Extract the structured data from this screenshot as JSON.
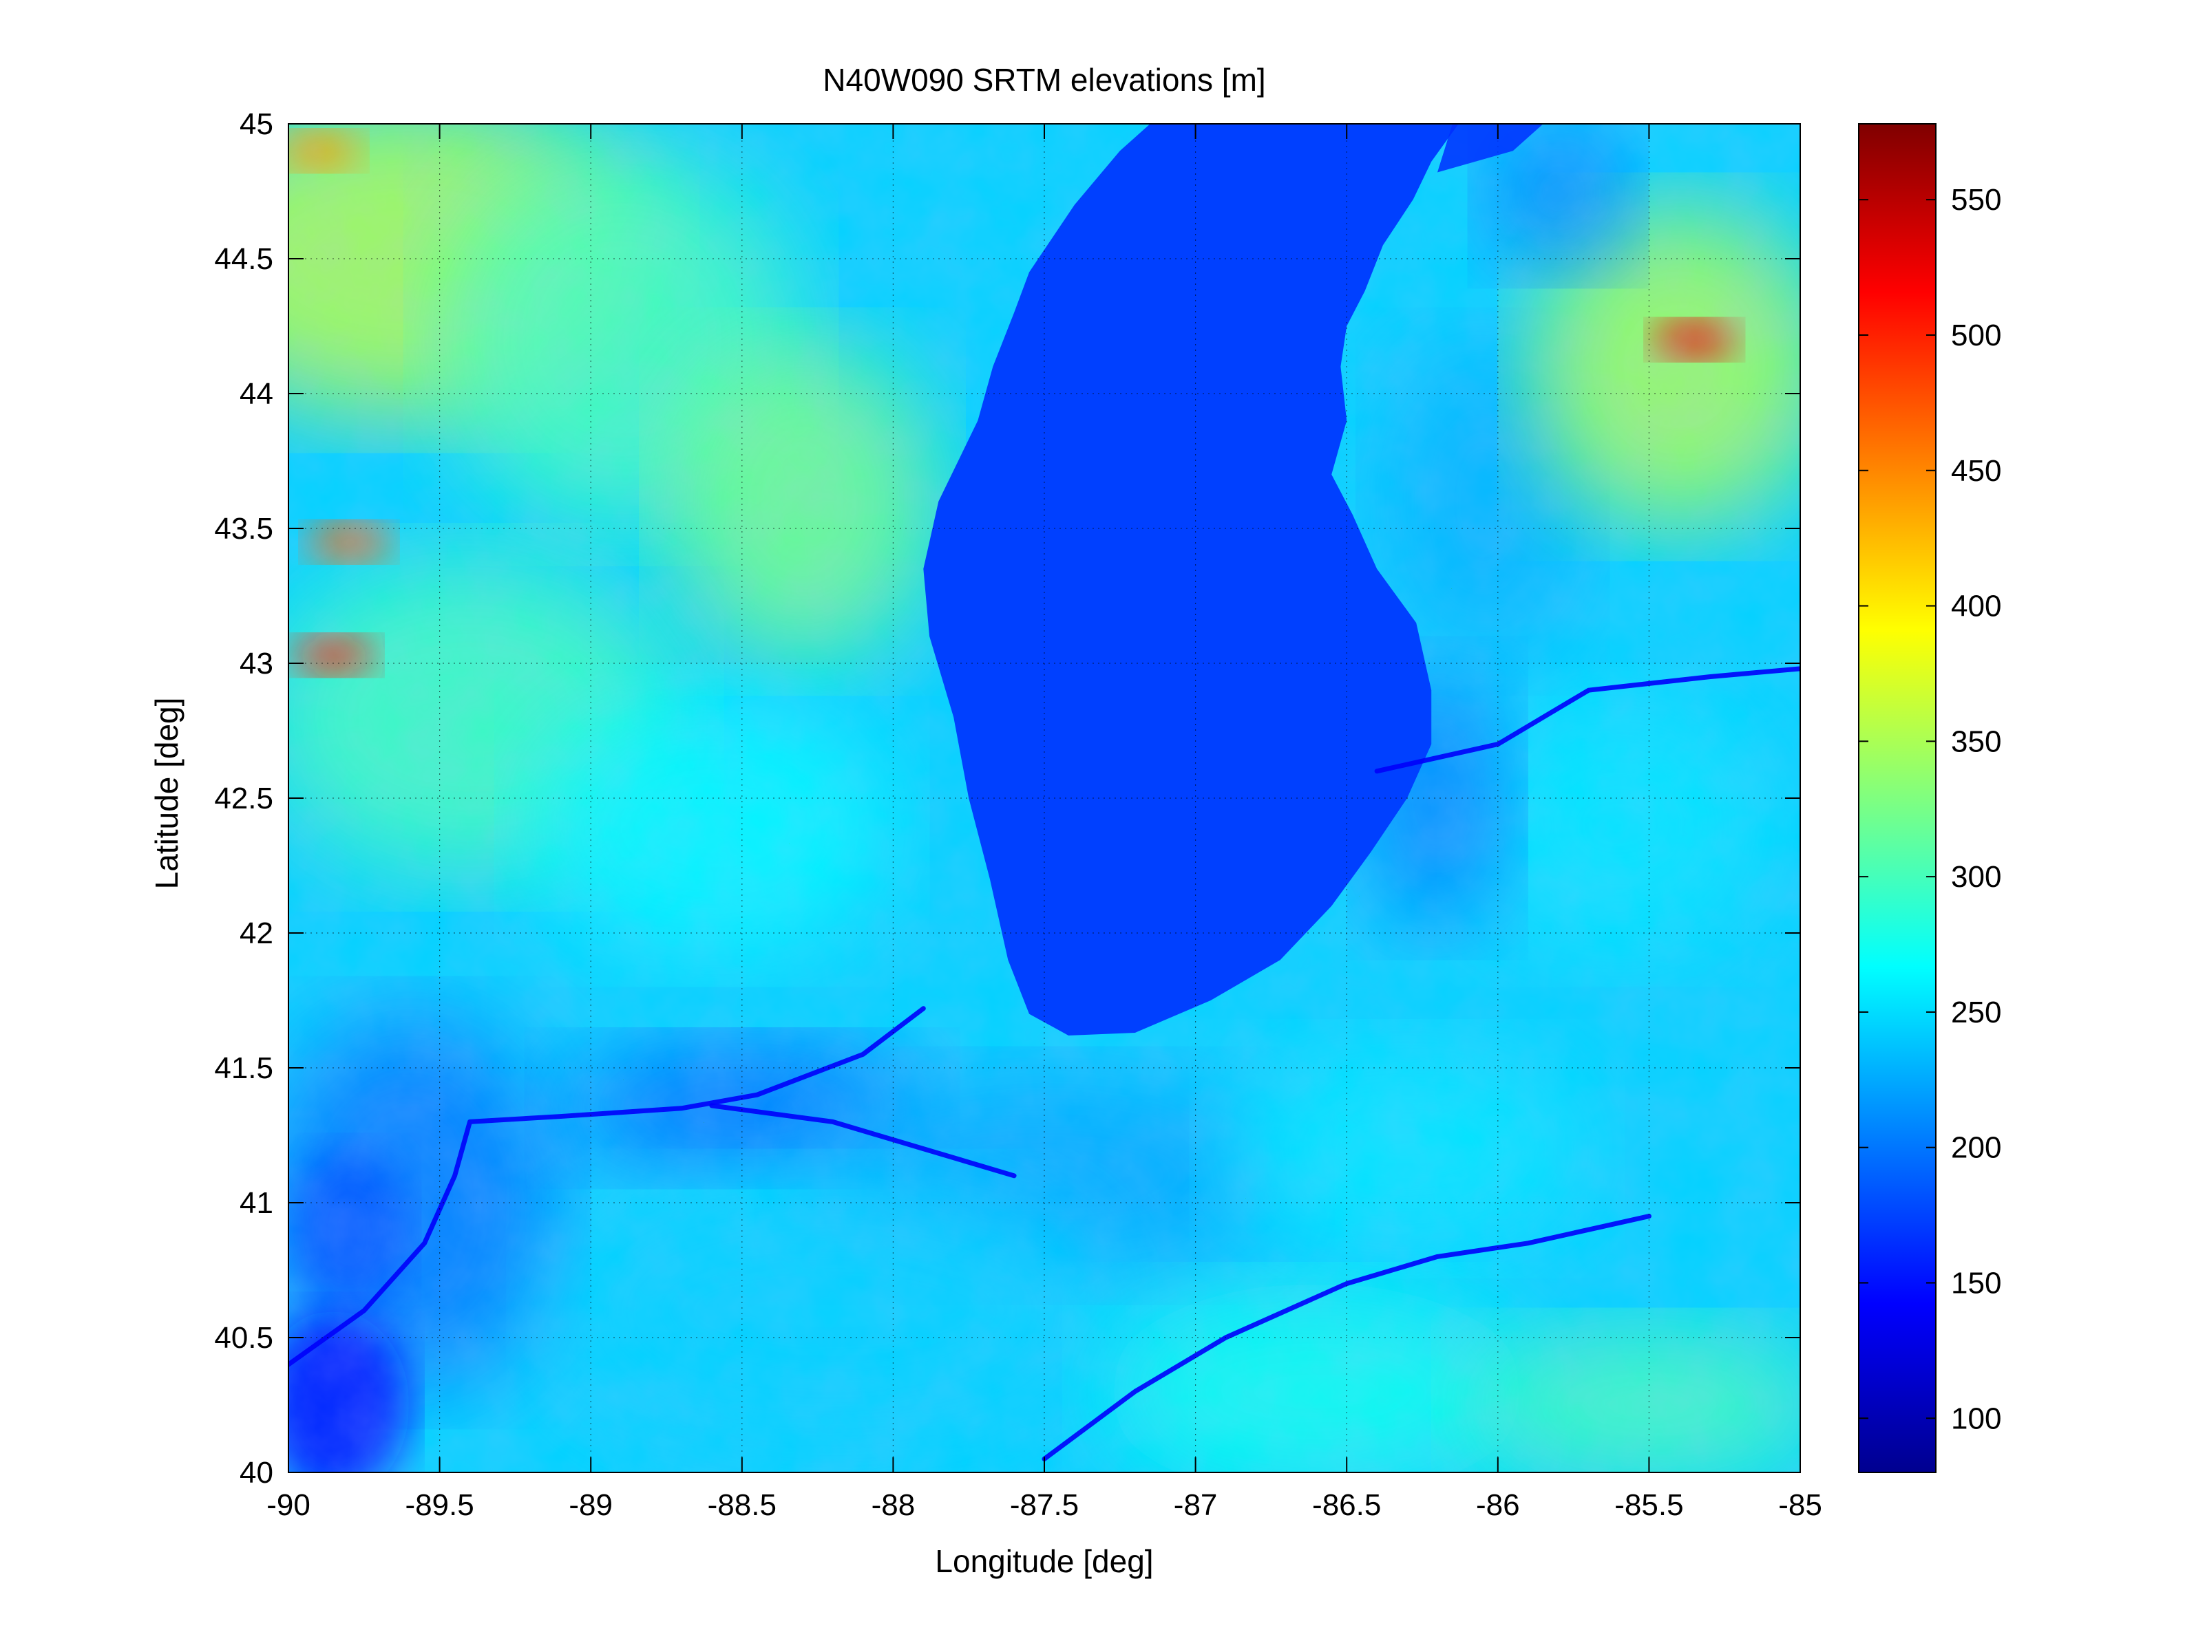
{
  "chart_data": {
    "type": "heatmap",
    "title": "N40W090 SRTM elevations [m]",
    "xlabel": "Longitude [deg]",
    "ylabel": "Latitude [deg]",
    "xlim": [
      -90,
      -85
    ],
    "ylim": [
      40,
      45
    ],
    "x_ticks": [
      -90,
      -89.5,
      -89,
      -88.5,
      -88,
      -87.5,
      -87,
      -86.5,
      -86,
      -85.5,
      -85
    ],
    "y_ticks": [
      40,
      40.5,
      41,
      41.5,
      42,
      42.5,
      43,
      43.5,
      44,
      44.5,
      45
    ],
    "grid": "on",
    "colormap": "jet",
    "colorbar": {
      "location": "right",
      "clim": [
        80,
        578
      ],
      "ticks": [
        100,
        150,
        200,
        250,
        300,
        350,
        400,
        450,
        500,
        550
      ]
    },
    "colors": {
      "jet_stops": [
        "#00008f",
        "#0000ff",
        "#00ffff",
        "#ffff00",
        "#ff0000",
        "#800000"
      ],
      "lake_color": "#0040ff"
    },
    "features": {
      "lake_michigan_outline_lonlat": [
        [
          -87.15,
          45.0
        ],
        [
          -86.13,
          45.0
        ],
        [
          -86.22,
          44.86
        ],
        [
          -86.28,
          44.72
        ],
        [
          -86.38,
          44.55
        ],
        [
          -86.44,
          44.38
        ],
        [
          -86.5,
          44.25
        ],
        [
          -86.52,
          44.1
        ],
        [
          -86.5,
          43.9
        ],
        [
          -86.55,
          43.7
        ],
        [
          -86.48,
          43.55
        ],
        [
          -86.4,
          43.35
        ],
        [
          -86.27,
          43.15
        ],
        [
          -86.22,
          42.9
        ],
        [
          -86.22,
          42.7
        ],
        [
          -86.3,
          42.5
        ],
        [
          -86.42,
          42.3
        ],
        [
          -86.55,
          42.1
        ],
        [
          -86.72,
          41.9
        ],
        [
          -86.95,
          41.75
        ],
        [
          -87.2,
          41.63
        ],
        [
          -87.42,
          41.62
        ],
        [
          -87.55,
          41.7
        ],
        [
          -87.62,
          41.9
        ],
        [
          -87.68,
          42.2
        ],
        [
          -87.75,
          42.5
        ],
        [
          -87.8,
          42.8
        ],
        [
          -87.88,
          43.1
        ],
        [
          -87.9,
          43.35
        ],
        [
          -87.85,
          43.6
        ],
        [
          -87.72,
          43.9
        ],
        [
          -87.67,
          44.1
        ],
        [
          -87.6,
          44.3
        ],
        [
          -87.55,
          44.45
        ],
        [
          -87.4,
          44.7
        ],
        [
          -87.25,
          44.9
        ]
      ],
      "high_ground_lonlat": [
        {
          "lon": -85.35,
          "lat": 44.2,
          "elev": 520
        },
        {
          "lon": -89.8,
          "lat": 43.45,
          "elev": 470
        },
        {
          "lon": -89.9,
          "lat": 44.9,
          "elev": 440
        },
        {
          "lon": -89.85,
          "lat": 43.03,
          "elev": 500
        }
      ]
    }
  }
}
